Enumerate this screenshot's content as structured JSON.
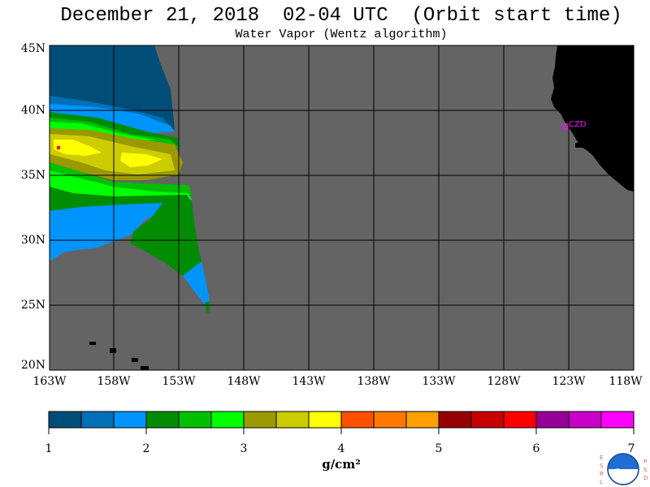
{
  "title": "December 21, 2018  02-04 UTC  (Orbit start time)",
  "subtitle": "Water Vapor (Wentz algorithm)",
  "map": {
    "lat_labels": [
      "45N",
      "40N",
      "35N",
      "30N",
      "25N",
      "20N"
    ],
    "lon_labels": [
      "163W",
      "158W",
      "153W",
      "148W",
      "143W",
      "138W",
      "133W",
      "128W",
      "123W",
      "118W"
    ],
    "station_label": "CZD",
    "colors": {
      "no_data": "#646464",
      "land": "#000000",
      "station": "#ff00ff"
    }
  },
  "colorbar": {
    "tick_labels": [
      "1",
      "2",
      "3",
      "4",
      "5",
      "6",
      "7"
    ],
    "units": "g/cm²",
    "colors": [
      "#004e78",
      "#0070b8",
      "#0094ff",
      "#008c00",
      "#00c000",
      "#00ff00",
      "#9a9a00",
      "#cccc00",
      "#ffff00",
      "#ff5000",
      "#ff7800",
      "#ffa000",
      "#960000",
      "#c80000",
      "#ff0000",
      "#960096",
      "#c800c8",
      "#ff00ff"
    ]
  },
  "logo": {
    "left_letters": "ESRL",
    "right_letters": "PSD",
    "text": "NOAA"
  }
}
